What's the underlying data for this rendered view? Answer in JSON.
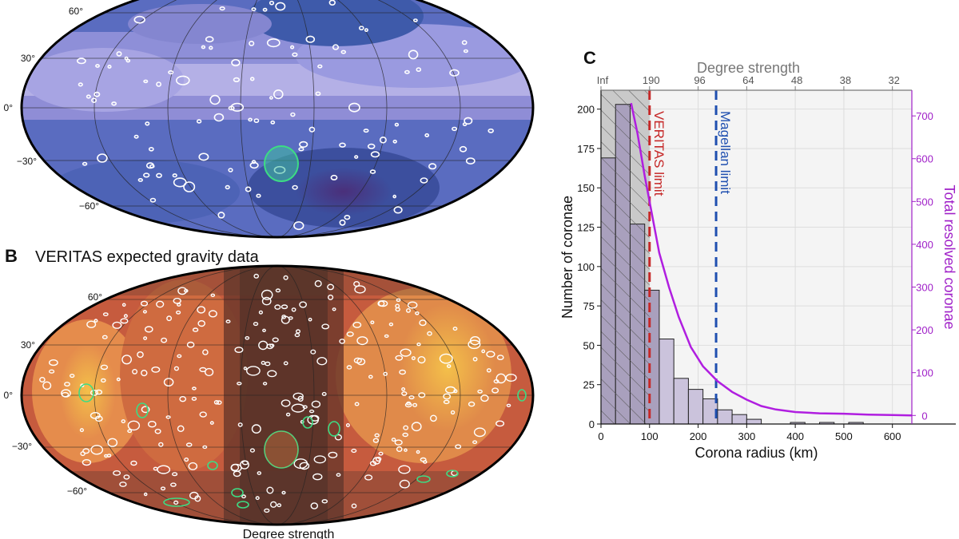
{
  "panel_a": {
    "lat_labels": [
      "60°",
      "30°",
      "0°",
      "−30°",
      "−60°"
    ]
  },
  "panel_b": {
    "letter": "B",
    "title": "VERITAS expected gravity data",
    "lat_labels": [
      "60°",
      "30°",
      "0°",
      "−30°",
      "−60°"
    ],
    "bottom_caption": "Degree strength"
  },
  "colors": {
    "bars": "#cbc3dc",
    "hatch_region": "#c9c9c9",
    "veritas_line": "#c62828",
    "magellan_line": "#1f4fb0",
    "cumulative_line": "#b01ee0",
    "right_axis": "#a020c8",
    "map_a_base": "#5c6fc0",
    "map_b_base": "#c95a3e",
    "resolved_corona_outline": "#3ddc84"
  },
  "chart_data": {
    "type": "bar",
    "panel_letter": "C",
    "xlabel": "Corona radius (km)",
    "ylabel": "Number of coronae",
    "y2label": "Total resolved coronae",
    "top_axis_label": "Degree strength",
    "xlim": [
      0,
      640
    ],
    "ylim": [
      0,
      212
    ],
    "y2lim": [
      -20,
      760
    ],
    "x_ticks": [
      0,
      100,
      200,
      300,
      400,
      500,
      600
    ],
    "x_tick_labels": [
      "0",
      "100",
      "200",
      "300",
      "400",
      "500",
      "600"
    ],
    "y_ticks": [
      0,
      25,
      50,
      75,
      100,
      125,
      150,
      175,
      200
    ],
    "y_tick_labels": [
      "0",
      "25",
      "50",
      "75",
      "100",
      "125",
      "150",
      "175",
      "200"
    ],
    "y2_ticks": [
      0,
      100,
      200,
      300,
      400,
      500,
      600,
      700
    ],
    "y2_tick_labels": [
      "0",
      "100",
      "200",
      "300",
      "400",
      "500",
      "600",
      "700"
    ],
    "top_ticks_x": [
      0,
      100,
      200,
      300,
      400,
      500,
      600
    ],
    "top_tick_labels": [
      "Inf",
      "190",
      "96",
      "64",
      "48",
      "38",
      "32"
    ],
    "histogram": {
      "bin_edges": [
        0,
        30,
        60,
        90,
        120,
        150,
        180,
        210,
        240,
        270,
        300,
        330,
        360,
        390,
        420,
        450,
        480,
        510,
        540,
        570,
        600,
        630
      ],
      "counts": [
        169,
        203,
        127,
        85,
        54,
        29,
        22,
        16,
        9,
        6,
        3,
        0,
        0,
        1,
        0,
        1,
        0,
        1,
        0,
        0,
        0
      ]
    },
    "hatched_region": [
      0,
      100
    ],
    "vlines": [
      {
        "name": "VERITAS limit",
        "x": 100,
        "color": "#c62828"
      },
      {
        "name": "Magellan limit",
        "x": 237,
        "color": "#1f4fb0"
      }
    ],
    "series": [
      {
        "name": "Total resolved coronae",
        "axis": "right",
        "x": [
          62,
          75,
          90,
          105,
          120,
          140,
          160,
          185,
          210,
          240,
          270,
          300,
          330,
          360,
          400,
          450,
          500,
          550,
          600,
          640
        ],
        "values": [
          730,
          660,
          560,
          470,
          380,
          300,
          230,
          160,
          115,
          80,
          55,
          37,
          22,
          14,
          8,
          5,
          4,
          2,
          1,
          0
        ]
      }
    ],
    "grid": true
  }
}
